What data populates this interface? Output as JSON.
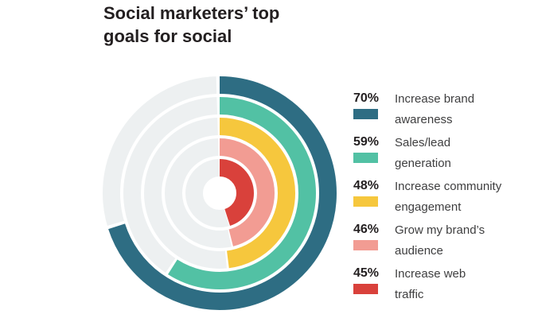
{
  "title": {
    "line1": "Social marketers’ top",
    "line2": "goals for social"
  },
  "legend": [
    {
      "pct": "70%",
      "label1": "Increase brand",
      "label2": "awareness",
      "color": "#2e6d83"
    },
    {
      "pct": "59%",
      "label1": "Sales/lead",
      "label2": "generation",
      "color": "#52c1a4"
    },
    {
      "pct": "48%",
      "label1": "Increase community",
      "label2": "engagement",
      "color": "#f6c73d"
    },
    {
      "pct": "46%",
      "label1": "Grow my brand’s",
      "label2": "audience",
      "color": "#f29c93"
    },
    {
      "pct": "45%",
      "label1": "Increase web",
      "label2": "traffic",
      "color": "#d9413b"
    }
  ],
  "chart_data": {
    "type": "pie",
    "variant": "concentric-radial-progress",
    "title": "Social marketers’ top goals for social",
    "categories": [
      "Increase brand awareness",
      "Sales/lead generation",
      "Increase community engagement",
      "Grow my brand’s audience",
      "Increase web traffic"
    ],
    "values": [
      70,
      59,
      48,
      46,
      45
    ],
    "unit": "%",
    "colors": [
      "#2e6d83",
      "#52c1a4",
      "#f6c73d",
      "#f29c93",
      "#d9413b"
    ],
    "track_color": "#edf0f1",
    "start": "12-o-clock",
    "direction": "clockwise",
    "rings_order": "outer-to-inner",
    "legend_position": "right",
    "grid": false
  }
}
